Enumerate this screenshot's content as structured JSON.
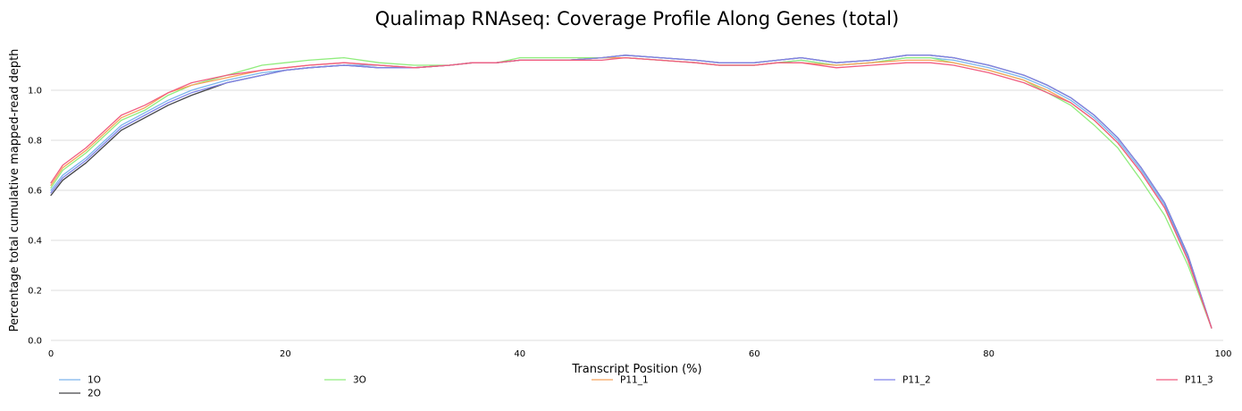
{
  "chart_data": {
    "type": "line",
    "title": "Qualimap RNAseq: Coverage Profile Along Genes (total)",
    "xlabel": "Transcript Position (%)",
    "ylabel": "Percentage total cumulative mapped-read depth",
    "xlim": [
      0,
      100
    ],
    "ylim": [
      0,
      1.2
    ],
    "x_ticks": [
      "0",
      "20",
      "40",
      "60",
      "80",
      "100"
    ],
    "y_ticks": [
      "0.0",
      "0.2",
      "0.4",
      "0.6",
      "0.8",
      "1.0"
    ],
    "grid": "horizontal",
    "legend_position": "bottom",
    "series": [
      {
        "name": "1O",
        "color": "#7cb5ec",
        "points": [
          [
            0,
            0.6
          ],
          [
            1,
            0.66
          ],
          [
            3,
            0.73
          ],
          [
            6,
            0.86
          ],
          [
            8,
            0.91
          ],
          [
            10,
            0.96
          ],
          [
            12,
            1.0
          ],
          [
            15,
            1.04
          ],
          [
            18,
            1.07
          ],
          [
            20,
            1.08
          ],
          [
            22,
            1.09
          ],
          [
            25,
            1.1
          ],
          [
            28,
            1.1
          ],
          [
            31,
            1.09
          ],
          [
            34,
            1.1
          ],
          [
            36,
            1.11
          ],
          [
            38,
            1.11
          ],
          [
            40,
            1.12
          ],
          [
            44,
            1.12
          ],
          [
            47,
            1.13
          ],
          [
            49,
            1.13
          ],
          [
            52,
            1.12
          ],
          [
            55,
            1.11
          ],
          [
            57,
            1.1
          ],
          [
            60,
            1.1
          ],
          [
            62,
            1.11
          ],
          [
            64,
            1.12
          ],
          [
            67,
            1.1
          ],
          [
            70,
            1.11
          ],
          [
            73,
            1.13
          ],
          [
            75,
            1.13
          ],
          [
            77,
            1.12
          ],
          [
            80,
            1.09
          ],
          [
            83,
            1.05
          ],
          [
            85,
            1.01
          ],
          [
            87,
            0.96
          ],
          [
            89,
            0.89
          ],
          [
            91,
            0.8
          ],
          [
            93,
            0.68
          ],
          [
            95,
            0.54
          ],
          [
            97,
            0.33
          ],
          [
            99,
            0.05
          ]
        ]
      },
      {
        "name": "2O",
        "color": "#434348",
        "points": [
          [
            0,
            0.58
          ],
          [
            1,
            0.64
          ],
          [
            3,
            0.71
          ],
          [
            6,
            0.84
          ],
          [
            8,
            0.89
          ],
          [
            10,
            0.94
          ],
          [
            12,
            0.98
          ],
          [
            15,
            1.03
          ],
          [
            18,
            1.06
          ],
          [
            20,
            1.08
          ],
          [
            22,
            1.09
          ],
          [
            25,
            1.1
          ],
          [
            28,
            1.09
          ],
          [
            31,
            1.09
          ],
          [
            34,
            1.1
          ],
          [
            36,
            1.11
          ],
          [
            38,
            1.11
          ],
          [
            40,
            1.12
          ],
          [
            44,
            1.12
          ],
          [
            47,
            1.13
          ],
          [
            49,
            1.14
          ],
          [
            52,
            1.13
          ],
          [
            55,
            1.12
          ],
          [
            57,
            1.11
          ],
          [
            60,
            1.11
          ],
          [
            62,
            1.12
          ],
          [
            64,
            1.13
          ],
          [
            67,
            1.11
          ],
          [
            70,
            1.12
          ],
          [
            73,
            1.14
          ],
          [
            75,
            1.14
          ],
          [
            77,
            1.13
          ],
          [
            80,
            1.1
          ],
          [
            83,
            1.06
          ],
          [
            85,
            1.02
          ],
          [
            87,
            0.97
          ],
          [
            89,
            0.9
          ],
          [
            91,
            0.81
          ],
          [
            93,
            0.69
          ],
          [
            95,
            0.55
          ],
          [
            97,
            0.34
          ],
          [
            99,
            0.05
          ]
        ]
      },
      {
        "name": "3O",
        "color": "#90ed7d",
        "points": [
          [
            0,
            0.61
          ],
          [
            1,
            0.68
          ],
          [
            3,
            0.75
          ],
          [
            6,
            0.88
          ],
          [
            8,
            0.92
          ],
          [
            10,
            0.98
          ],
          [
            12,
            1.02
          ],
          [
            15,
            1.06
          ],
          [
            18,
            1.1
          ],
          [
            20,
            1.11
          ],
          [
            22,
            1.12
          ],
          [
            25,
            1.13
          ],
          [
            28,
            1.11
          ],
          [
            31,
            1.1
          ],
          [
            34,
            1.1
          ],
          [
            36,
            1.11
          ],
          [
            38,
            1.11
          ],
          [
            40,
            1.13
          ],
          [
            44,
            1.13
          ],
          [
            47,
            1.13
          ],
          [
            49,
            1.13
          ],
          [
            52,
            1.12
          ],
          [
            55,
            1.11
          ],
          [
            57,
            1.1
          ],
          [
            60,
            1.1
          ],
          [
            62,
            1.11
          ],
          [
            64,
            1.12
          ],
          [
            67,
            1.1
          ],
          [
            70,
            1.11
          ],
          [
            73,
            1.13
          ],
          [
            75,
            1.13
          ],
          [
            77,
            1.11
          ],
          [
            80,
            1.08
          ],
          [
            83,
            1.04
          ],
          [
            85,
            0.99
          ],
          [
            87,
            0.94
          ],
          [
            89,
            0.86
          ],
          [
            91,
            0.77
          ],
          [
            93,
            0.64
          ],
          [
            95,
            0.5
          ],
          [
            97,
            0.3
          ],
          [
            99,
            0.05
          ]
        ]
      },
      {
        "name": "P11_1",
        "color": "#f7a35c",
        "points": [
          [
            0,
            0.62
          ],
          [
            1,
            0.69
          ],
          [
            3,
            0.76
          ],
          [
            6,
            0.89
          ],
          [
            8,
            0.93
          ],
          [
            10,
            0.99
          ],
          [
            12,
            1.02
          ],
          [
            15,
            1.05
          ],
          [
            18,
            1.08
          ],
          [
            20,
            1.09
          ],
          [
            22,
            1.1
          ],
          [
            25,
            1.11
          ],
          [
            28,
            1.1
          ],
          [
            31,
            1.09
          ],
          [
            34,
            1.1
          ],
          [
            36,
            1.11
          ],
          [
            38,
            1.11
          ],
          [
            40,
            1.12
          ],
          [
            44,
            1.12
          ],
          [
            47,
            1.13
          ],
          [
            49,
            1.13
          ],
          [
            52,
            1.12
          ],
          [
            55,
            1.11
          ],
          [
            57,
            1.1
          ],
          [
            60,
            1.1
          ],
          [
            62,
            1.11
          ],
          [
            64,
            1.11
          ],
          [
            67,
            1.1
          ],
          [
            70,
            1.11
          ],
          [
            73,
            1.12
          ],
          [
            75,
            1.12
          ],
          [
            77,
            1.11
          ],
          [
            80,
            1.08
          ],
          [
            83,
            1.04
          ],
          [
            85,
            1.0
          ],
          [
            87,
            0.95
          ],
          [
            89,
            0.88
          ],
          [
            91,
            0.79
          ],
          [
            93,
            0.67
          ],
          [
            95,
            0.53
          ],
          [
            97,
            0.32
          ],
          [
            99,
            0.05
          ]
        ]
      },
      {
        "name": "P11_2",
        "color": "#8085e9",
        "points": [
          [
            0,
            0.59
          ],
          [
            1,
            0.65
          ],
          [
            3,
            0.72
          ],
          [
            6,
            0.85
          ],
          [
            8,
            0.9
          ],
          [
            10,
            0.95
          ],
          [
            12,
            0.99
          ],
          [
            15,
            1.03
          ],
          [
            18,
            1.06
          ],
          [
            20,
            1.08
          ],
          [
            22,
            1.09
          ],
          [
            25,
            1.1
          ],
          [
            28,
            1.09
          ],
          [
            31,
            1.09
          ],
          [
            34,
            1.1
          ],
          [
            36,
            1.11
          ],
          [
            38,
            1.11
          ],
          [
            40,
            1.12
          ],
          [
            44,
            1.12
          ],
          [
            47,
            1.13
          ],
          [
            49,
            1.14
          ],
          [
            52,
            1.13
          ],
          [
            55,
            1.12
          ],
          [
            57,
            1.11
          ],
          [
            60,
            1.11
          ],
          [
            62,
            1.12
          ],
          [
            64,
            1.13
          ],
          [
            67,
            1.11
          ],
          [
            70,
            1.12
          ],
          [
            73,
            1.14
          ],
          [
            75,
            1.14
          ],
          [
            77,
            1.13
          ],
          [
            80,
            1.1
          ],
          [
            83,
            1.06
          ],
          [
            85,
            1.02
          ],
          [
            87,
            0.97
          ],
          [
            89,
            0.9
          ],
          [
            91,
            0.81
          ],
          [
            93,
            0.69
          ],
          [
            95,
            0.55
          ],
          [
            97,
            0.34
          ],
          [
            99,
            0.05
          ]
        ]
      },
      {
        "name": "P11_3",
        "color": "#f15c80",
        "points": [
          [
            0,
            0.63
          ],
          [
            1,
            0.7
          ],
          [
            3,
            0.77
          ],
          [
            6,
            0.9
          ],
          [
            8,
            0.94
          ],
          [
            10,
            0.99
          ],
          [
            12,
            1.03
          ],
          [
            15,
            1.06
          ],
          [
            18,
            1.08
          ],
          [
            20,
            1.09
          ],
          [
            22,
            1.1
          ],
          [
            25,
            1.11
          ],
          [
            28,
            1.1
          ],
          [
            31,
            1.09
          ],
          [
            34,
            1.1
          ],
          [
            36,
            1.11
          ],
          [
            38,
            1.11
          ],
          [
            40,
            1.12
          ],
          [
            44,
            1.12
          ],
          [
            47,
            1.12
          ],
          [
            49,
            1.13
          ],
          [
            52,
            1.12
          ],
          [
            55,
            1.11
          ],
          [
            57,
            1.1
          ],
          [
            60,
            1.1
          ],
          [
            62,
            1.11
          ],
          [
            64,
            1.11
          ],
          [
            67,
            1.09
          ],
          [
            70,
            1.1
          ],
          [
            73,
            1.11
          ],
          [
            75,
            1.11
          ],
          [
            77,
            1.1
          ],
          [
            80,
            1.07
          ],
          [
            83,
            1.03
          ],
          [
            85,
            0.99
          ],
          [
            87,
            0.95
          ],
          [
            89,
            0.88
          ],
          [
            91,
            0.79
          ],
          [
            93,
            0.67
          ],
          [
            95,
            0.53
          ],
          [
            97,
            0.32
          ],
          [
            99,
            0.05
          ]
        ]
      }
    ]
  }
}
